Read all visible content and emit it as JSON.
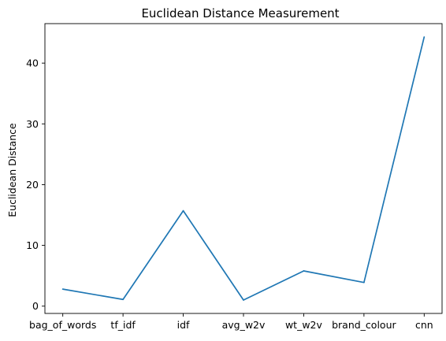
{
  "chart_data": {
    "type": "line",
    "title": "Euclidean Distance Measurement",
    "xlabel": "",
    "ylabel": "Euclidean Distance",
    "categories": [
      "bag_of_words",
      "tf_idf",
      "idf",
      "avg_w2v",
      "wt_w2v",
      "brand_colour",
      "cnn"
    ],
    "series": [
      {
        "values": [
          2.8,
          1.1,
          15.7,
          1.0,
          5.8,
          3.9,
          44.3
        ]
      }
    ],
    "ylim": [
      -1.2,
      46.5
    ],
    "yticks": [
      0,
      10,
      20,
      30,
      40
    ],
    "grid": false,
    "legend": "none",
    "colors": {
      "line": "#1f77b4",
      "axes": "#000000",
      "background": "#ffffff"
    }
  }
}
